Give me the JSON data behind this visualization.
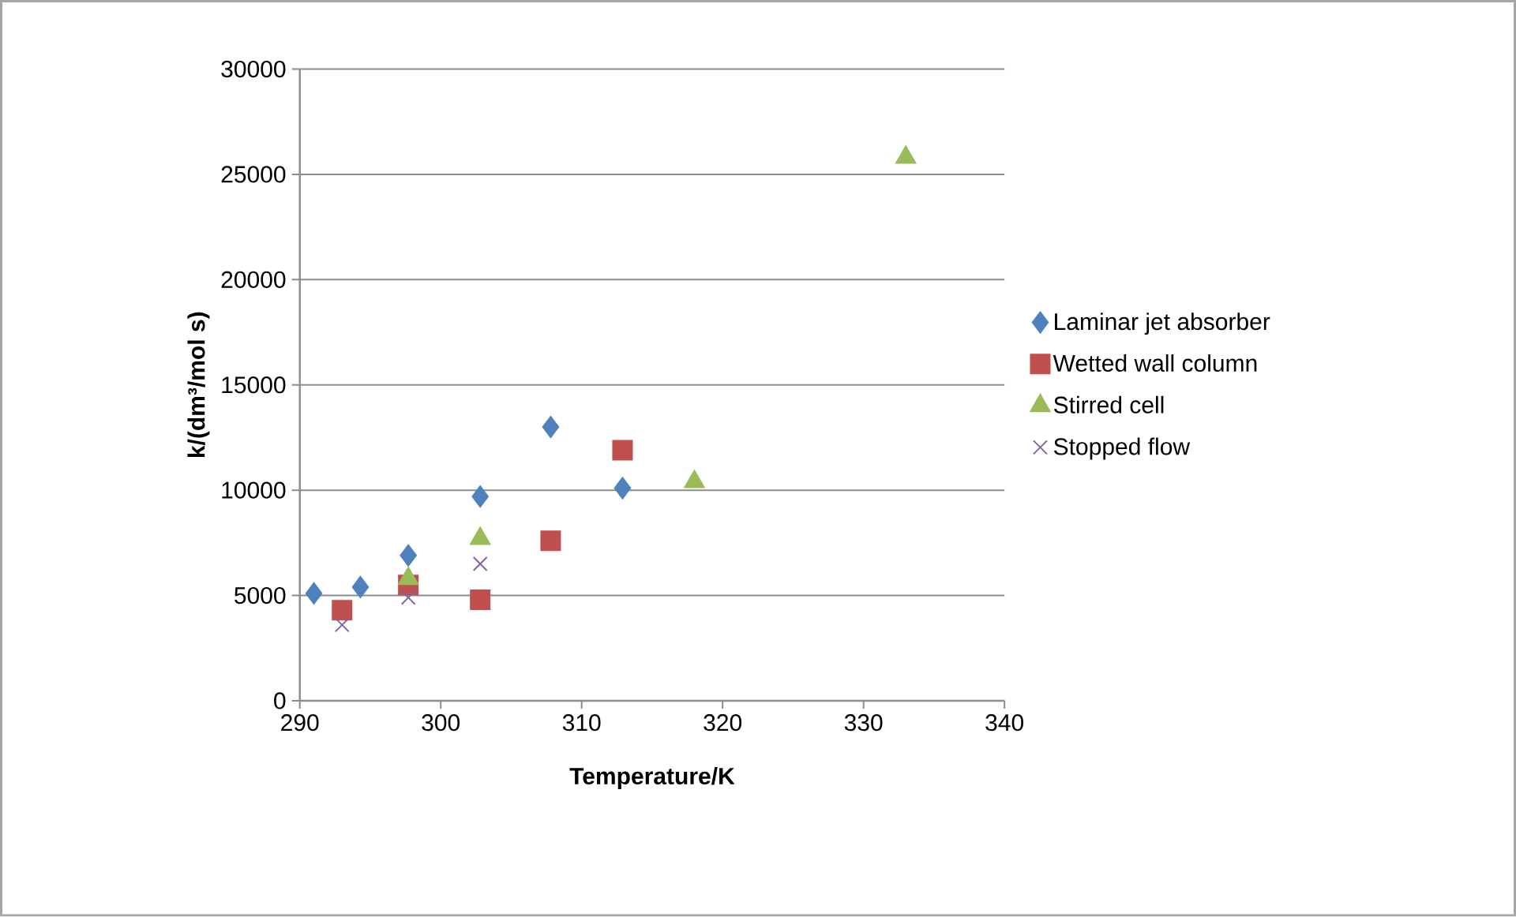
{
  "chart_data": {
    "type": "scatter",
    "xlabel": "Temperature/K",
    "ylabel": "k/(dm³/mol s)",
    "xlim": [
      290,
      340
    ],
    "xticks": [
      290,
      300,
      310,
      320,
      330,
      340
    ],
    "ylim": [
      0,
      30000
    ],
    "yticks": [
      0,
      5000,
      10000,
      15000,
      20000,
      25000,
      30000
    ],
    "grid": "y",
    "legend": "right",
    "series": [
      {
        "name": "Laminar jet absorber",
        "color": "#4f81bd",
        "marker": "diamond",
        "x": [
          291,
          294.3,
          297.7,
          302.8,
          307.8,
          312.9
        ],
        "values": [
          5100,
          5400,
          6900,
          9700,
          13000,
          10100
        ]
      },
      {
        "name": "Wetted wall column",
        "color": "#c0504d",
        "marker": "square",
        "x": [
          293,
          297.7,
          302.8,
          307.8,
          312.9
        ],
        "values": [
          4300,
          5500,
          4800,
          7600,
          11900
        ]
      },
      {
        "name": "Stirred cell",
        "color": "#9bbb59",
        "marker": "triangle",
        "x": [
          297.7,
          302.8,
          318,
          333
        ],
        "values": [
          5800,
          7700,
          10400,
          25800
        ]
      },
      {
        "name": "Stopped flow",
        "color": "#8064a2",
        "marker": "cross",
        "x": [
          293,
          297.7,
          302.8
        ],
        "values": [
          3600,
          4900,
          6500
        ]
      }
    ]
  }
}
